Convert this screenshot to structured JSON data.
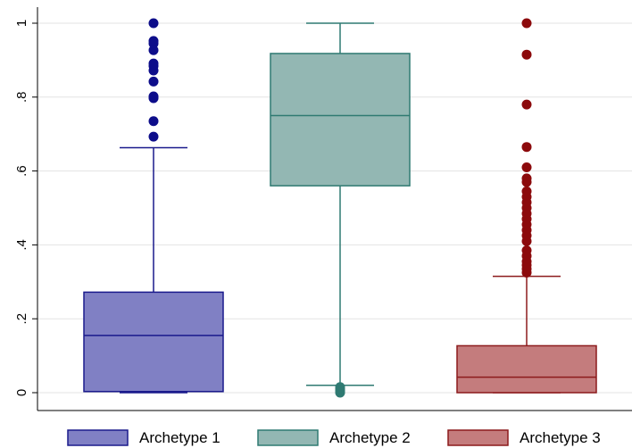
{
  "chart_data": {
    "type": "box",
    "ylim": [
      0,
      1
    ],
    "y_ticks": [
      {
        "value": 0,
        "label": "0"
      },
      {
        "value": 0.2,
        "label": ".2"
      },
      {
        "value": 0.4,
        "label": ".4"
      },
      {
        "value": 0.6,
        "label": ".6"
      },
      {
        "value": 0.8,
        "label": ".8"
      },
      {
        "value": 1,
        "label": "1"
      }
    ],
    "grid": true,
    "legend_position": "bottom",
    "series": [
      {
        "name": "Archetype 1",
        "fill": "#8080c4",
        "stroke": "#1a1a8c",
        "outlier_color": "#0d0d8a",
        "min": 0.0,
        "q1": 0.003,
        "median": 0.155,
        "q3": 0.272,
        "max": 0.663,
        "outliers": [
          0.693,
          0.735,
          0.797,
          0.802,
          0.842,
          0.872,
          0.884,
          0.891,
          0.927,
          0.945,
          0.952,
          1.0
        ]
      },
      {
        "name": "Archetype 2",
        "fill": "#93b7b3",
        "stroke": "#2f7a72",
        "outlier_color": "#2f7a72",
        "min": 0.02,
        "q1": 0.56,
        "median": 0.75,
        "q3": 0.918,
        "max": 1.0,
        "outliers": [
          0.0,
          0.005,
          0.01,
          0.015
        ]
      },
      {
        "name": "Archetype 3",
        "fill": "#c47c7d",
        "stroke": "#8c1a1c",
        "outlier_color": "#8c0a0c",
        "min": 0.0,
        "q1": 0.0,
        "median": 0.042,
        "q3": 0.127,
        "max": 0.315,
        "outliers": [
          0.325,
          0.335,
          0.345,
          0.355,
          0.37,
          0.385,
          0.41,
          0.425,
          0.44,
          0.455,
          0.47,
          0.485,
          0.5,
          0.515,
          0.53,
          0.545,
          0.57,
          0.58,
          0.61,
          0.665,
          0.78,
          0.915,
          1.0
        ]
      }
    ]
  }
}
